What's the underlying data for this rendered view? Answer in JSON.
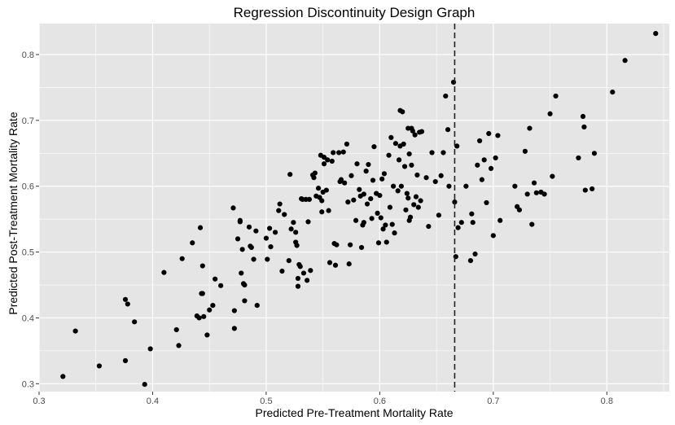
{
  "chart_data": {
    "type": "scatter",
    "title": "Regression Discontinuity Design Graph",
    "xlabel": "Predicted Pre-Treatment Mortality Rate",
    "ylabel": "Predicted Post-Treatment Mortality Rate",
    "xlim": [
      0.3,
      0.855
    ],
    "ylim": [
      0.288,
      0.847
    ],
    "x_ticks": [
      0.3,
      0.4,
      0.5,
      0.6,
      0.7,
      0.8
    ],
    "x_tick_labels": [
      "0.3",
      "0.4",
      "0.5",
      "0.6",
      "0.7",
      "0.8"
    ],
    "y_ticks": [
      0.3,
      0.4,
      0.5,
      0.6,
      0.7,
      0.8
    ],
    "y_tick_labels": [
      "0.3",
      "0.4",
      "0.5",
      "0.6",
      "0.7",
      "0.8"
    ],
    "grid": true,
    "cutoff_x": 0.666,
    "colors": {
      "panel": "#e5e5e5",
      "grid": "#ffffff",
      "point": "#000000",
      "cutoff": "#222222"
    },
    "points": [
      [
        0.321,
        0.311
      ],
      [
        0.332,
        0.38
      ],
      [
        0.353,
        0.327
      ],
      [
        0.376,
        0.335
      ],
      [
        0.376,
        0.428
      ],
      [
        0.378,
        0.421
      ],
      [
        0.384,
        0.394
      ],
      [
        0.393,
        0.299
      ],
      [
        0.398,
        0.353
      ],
      [
        0.41,
        0.469
      ],
      [
        0.421,
        0.382
      ],
      [
        0.423,
        0.358
      ],
      [
        0.426,
        0.49
      ],
      [
        0.435,
        0.514
      ],
      [
        0.439,
        0.403
      ],
      [
        0.441,
        0.4
      ],
      [
        0.442,
        0.537
      ],
      [
        0.443,
        0.437
      ],
      [
        0.444,
        0.437
      ],
      [
        0.444,
        0.479
      ],
      [
        0.445,
        0.402
      ],
      [
        0.448,
        0.374
      ],
      [
        0.45,
        0.412
      ],
      [
        0.453,
        0.419
      ],
      [
        0.455,
        0.459
      ],
      [
        0.46,
        0.449
      ],
      [
        0.471,
        0.567
      ],
      [
        0.472,
        0.384
      ],
      [
        0.472,
        0.411
      ],
      [
        0.475,
        0.52
      ],
      [
        0.477,
        0.548
      ],
      [
        0.477,
        0.546
      ],
      [
        0.478,
        0.468
      ],
      [
        0.479,
        0.504
      ],
      [
        0.48,
        0.452
      ],
      [
        0.481,
        0.45
      ],
      [
        0.481,
        0.426
      ],
      [
        0.485,
        0.538
      ],
      [
        0.486,
        0.509
      ],
      [
        0.487,
        0.507
      ],
      [
        0.489,
        0.489
      ],
      [
        0.491,
        0.532
      ],
      [
        0.492,
        0.419
      ],
      [
        0.5,
        0.521
      ],
      [
        0.501,
        0.489
      ],
      [
        0.503,
        0.536
      ],
      [
        0.504,
        0.508
      ],
      [
        0.508,
        0.53
      ],
      [
        0.511,
        0.563
      ],
      [
        0.512,
        0.573
      ],
      [
        0.514,
        0.471
      ],
      [
        0.516,
        0.557
      ],
      [
        0.52,
        0.487
      ],
      [
        0.521,
        0.618
      ],
      [
        0.522,
        0.535
      ],
      [
        0.524,
        0.545
      ],
      [
        0.526,
        0.53
      ],
      [
        0.526,
        0.515
      ],
      [
        0.527,
        0.51
      ],
      [
        0.528,
        0.46
      ],
      [
        0.528,
        0.448
      ],
      [
        0.529,
        0.481
      ],
      [
        0.53,
        0.478
      ],
      [
        0.531,
        0.581
      ],
      [
        0.532,
        0.58
      ],
      [
        0.533,
        0.468
      ],
      [
        0.535,
        0.58
      ],
      [
        0.536,
        0.457
      ],
      [
        0.537,
        0.546
      ],
      [
        0.538,
        0.58
      ],
      [
        0.539,
        0.472
      ],
      [
        0.541,
        0.617
      ],
      [
        0.542,
        0.613
      ],
      [
        0.543,
        0.62
      ],
      [
        0.544,
        0.585
      ],
      [
        0.546,
        0.597
      ],
      [
        0.547,
        0.583
      ],
      [
        0.548,
        0.647
      ],
      [
        0.549,
        0.578
      ],
      [
        0.549,
        0.561
      ],
      [
        0.55,
        0.591
      ],
      [
        0.551,
        0.644
      ],
      [
        0.551,
        0.634
      ],
      [
        0.553,
        0.594
      ],
      [
        0.554,
        0.64
      ],
      [
        0.555,
        0.563
      ],
      [
        0.556,
        0.484
      ],
      [
        0.558,
        0.638
      ],
      [
        0.559,
        0.651
      ],
      [
        0.56,
        0.513
      ],
      [
        0.561,
        0.48
      ],
      [
        0.562,
        0.511
      ],
      [
        0.564,
        0.651
      ],
      [
        0.565,
        0.607
      ],
      [
        0.566,
        0.61
      ],
      [
        0.568,
        0.652
      ],
      [
        0.569,
        0.605
      ],
      [
        0.571,
        0.664
      ],
      [
        0.572,
        0.576
      ],
      [
        0.573,
        0.482
      ],
      [
        0.574,
        0.511
      ],
      [
        0.575,
        0.616
      ],
      [
        0.577,
        0.579
      ],
      [
        0.579,
        0.548
      ],
      [
        0.58,
        0.634
      ],
      [
        0.582,
        0.595
      ],
      [
        0.583,
        0.585
      ],
      [
        0.584,
        0.507
      ],
      [
        0.585,
        0.541
      ],
      [
        0.586,
        0.588
      ],
      [
        0.586,
        0.545
      ],
      [
        0.588,
        0.623
      ],
      [
        0.589,
        0.573
      ],
      [
        0.59,
        0.633
      ],
      [
        0.592,
        0.581
      ],
      [
        0.593,
        0.551
      ],
      [
        0.594,
        0.609
      ],
      [
        0.595,
        0.66
      ],
      [
        0.597,
        0.589
      ],
      [
        0.598,
        0.559
      ],
      [
        0.599,
        0.514
      ],
      [
        0.6,
        0.586
      ],
      [
        0.601,
        0.552
      ],
      [
        0.602,
        0.611
      ],
      [
        0.603,
        0.535
      ],
      [
        0.604,
        0.619
      ],
      [
        0.605,
        0.541
      ],
      [
        0.606,
        0.515
      ],
      [
        0.608,
        0.647
      ],
      [
        0.609,
        0.568
      ],
      [
        0.61,
        0.674
      ],
      [
        0.611,
        0.542
      ],
      [
        0.612,
        0.6
      ],
      [
        0.613,
        0.529
      ],
      [
        0.614,
        0.665
      ],
      [
        0.616,
        0.593
      ],
      [
        0.617,
        0.64
      ],
      [
        0.618,
        0.661
      ],
      [
        0.618,
        0.715
      ],
      [
        0.619,
        0.6
      ],
      [
        0.62,
        0.713
      ],
      [
        0.621,
        0.664
      ],
      [
        0.622,
        0.63
      ],
      [
        0.623,
        0.564
      ],
      [
        0.624,
        0.589
      ],
      [
        0.625,
        0.688
      ],
      [
        0.625,
        0.582
      ],
      [
        0.626,
        0.649
      ],
      [
        0.626,
        0.548
      ],
      [
        0.627,
        0.553
      ],
      [
        0.628,
        0.688
      ],
      [
        0.628,
        0.632
      ],
      [
        0.629,
        0.684
      ],
      [
        0.63,
        0.572
      ],
      [
        0.631,
        0.678
      ],
      [
        0.632,
        0.584
      ],
      [
        0.633,
        0.617
      ],
      [
        0.634,
        0.568
      ],
      [
        0.635,
        0.682
      ],
      [
        0.636,
        0.578
      ],
      [
        0.637,
        0.683
      ],
      [
        0.641,
        0.613
      ],
      [
        0.643,
        0.539
      ],
      [
        0.646,
        0.651
      ],
      [
        0.649,
        0.607
      ],
      [
        0.652,
        0.556
      ],
      [
        0.654,
        0.616
      ],
      [
        0.656,
        0.651
      ],
      [
        0.658,
        0.737
      ],
      [
        0.66,
        0.686
      ],
      [
        0.661,
        0.6
      ],
      [
        0.665,
        0.758
      ],
      [
        0.666,
        0.576
      ],
      [
        0.667,
        0.493
      ],
      [
        0.668,
        0.661
      ],
      [
        0.669,
        0.537
      ],
      [
        0.672,
        0.545
      ],
      [
        0.676,
        0.6
      ],
      [
        0.68,
        0.487
      ],
      [
        0.681,
        0.558
      ],
      [
        0.682,
        0.545
      ],
      [
        0.684,
        0.497
      ],
      [
        0.686,
        0.632
      ],
      [
        0.688,
        0.669
      ],
      [
        0.69,
        0.61
      ],
      [
        0.692,
        0.64
      ],
      [
        0.694,
        0.575
      ],
      [
        0.696,
        0.68
      ],
      [
        0.698,
        0.627
      ],
      [
        0.7,
        0.525
      ],
      [
        0.702,
        0.643
      ],
      [
        0.704,
        0.677
      ],
      [
        0.706,
        0.548
      ],
      [
        0.719,
        0.6
      ],
      [
        0.721,
        0.569
      ],
      [
        0.723,
        0.564
      ],
      [
        0.728,
        0.653
      ],
      [
        0.73,
        0.588
      ],
      [
        0.732,
        0.688
      ],
      [
        0.734,
        0.542
      ],
      [
        0.736,
        0.605
      ],
      [
        0.738,
        0.59
      ],
      [
        0.742,
        0.591
      ],
      [
        0.745,
        0.588
      ],
      [
        0.75,
        0.71
      ],
      [
        0.752,
        0.615
      ],
      [
        0.755,
        0.737
      ],
      [
        0.775,
        0.643
      ],
      [
        0.779,
        0.706
      ],
      [
        0.78,
        0.69
      ],
      [
        0.781,
        0.594
      ],
      [
        0.787,
        0.596
      ],
      [
        0.789,
        0.65
      ],
      [
        0.805,
        0.743
      ],
      [
        0.816,
        0.791
      ],
      [
        0.843,
        0.832
      ]
    ]
  }
}
